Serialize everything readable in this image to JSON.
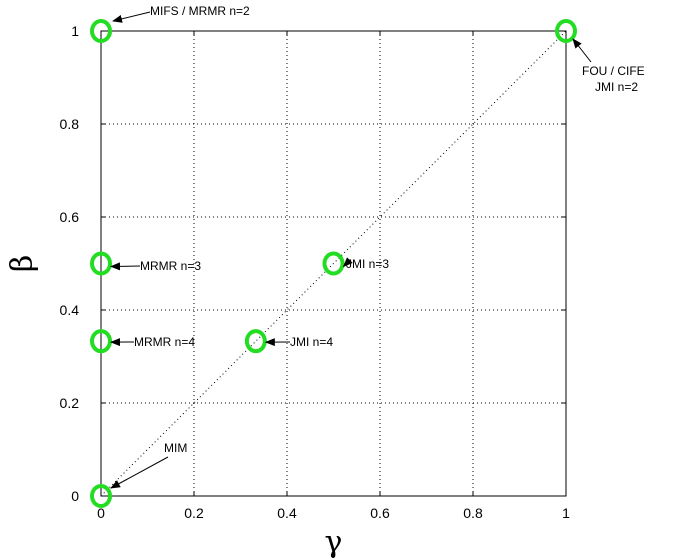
{
  "chart_data": {
    "type": "scatter",
    "title": "",
    "xlabel": "γ",
    "ylabel": "β",
    "xlim": [
      0,
      1
    ],
    "ylim": [
      0,
      1
    ],
    "xticks": [
      "0",
      "0.2",
      "0.4",
      "0.6",
      "0.8",
      "1"
    ],
    "yticks": [
      "0",
      "0.2",
      "0.4",
      "0.6",
      "0.8",
      "1"
    ],
    "grid": true,
    "legend": "none",
    "marker": "circle",
    "marker_color": "#22dd22",
    "diagonal_line": true,
    "points": [
      {
        "x": 0,
        "y": 1,
        "label": "MIFS / MRMR n=2"
      },
      {
        "x": 1,
        "y": 1,
        "label": [
          "FOU / CIFE",
          "JMI n=2"
        ]
      },
      {
        "x": 0,
        "y": 0.5,
        "label": "MRMR n=3"
      },
      {
        "x": 0.5,
        "y": 0.5,
        "label": "JMI n=3"
      },
      {
        "x": 0,
        "y": 0.333,
        "label": "MRMR n=4"
      },
      {
        "x": 0.333,
        "y": 0.333,
        "label": "JMI n=4"
      },
      {
        "x": 0,
        "y": 0,
        "label": "MIM"
      }
    ]
  }
}
